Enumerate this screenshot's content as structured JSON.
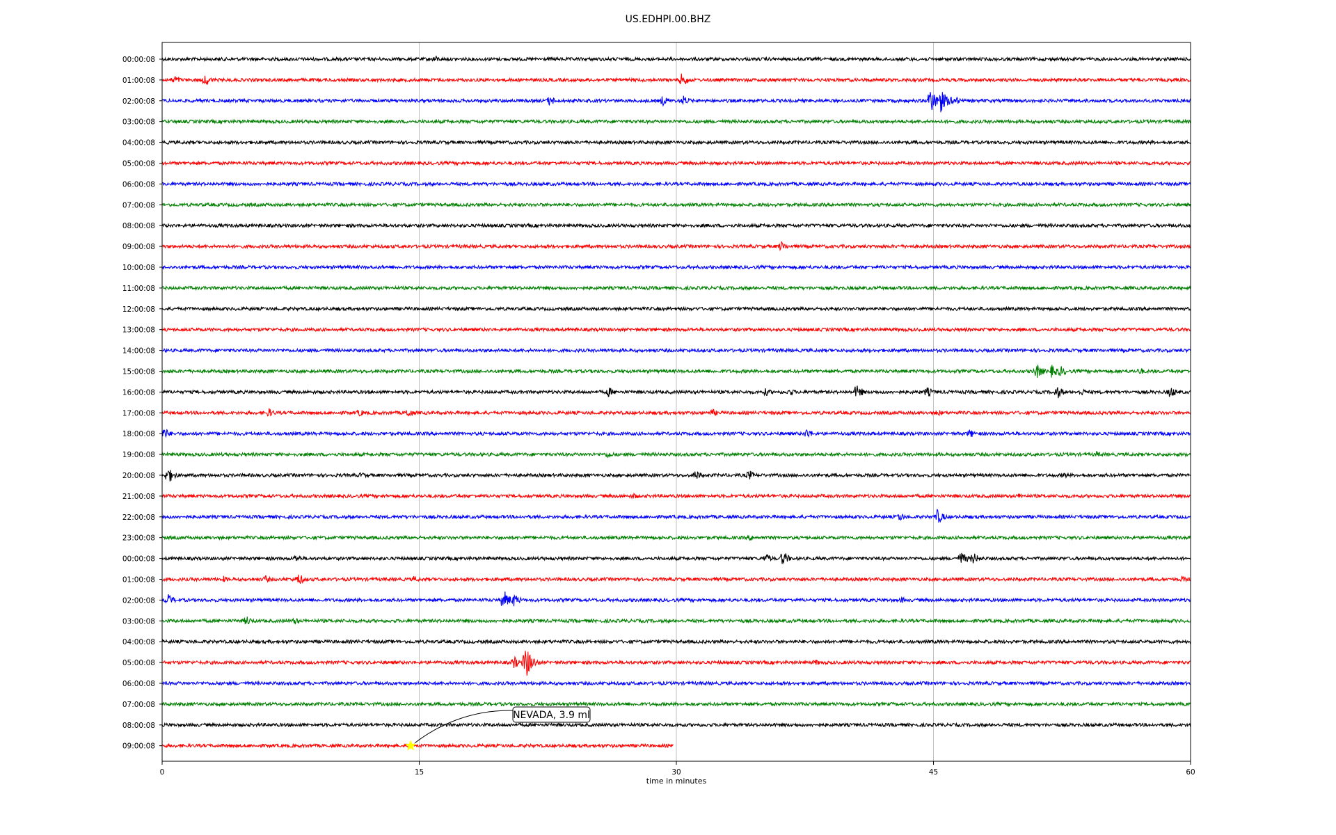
{
  "chart_data": {
    "type": "line",
    "title": "US.EDHPI.00.BHZ",
    "xlabel": "time in minutes",
    "xlim": [
      0,
      60
    ],
    "xticks": [
      "0",
      "15",
      "30",
      "45",
      "60"
    ],
    "grid": "vertical lines at 15, 30, 45",
    "trace_colors": [
      "#000000",
      "#ff0000",
      "#0000ff",
      "#008000"
    ],
    "rows": [
      {
        "label": "00:00:08",
        "end_min": 60,
        "events": [
          {
            "t": 15.9,
            "amp": 6
          }
        ]
      },
      {
        "label": "01:00:08",
        "end_min": 60,
        "events": [
          {
            "t": 0.7,
            "amp": 7
          },
          {
            "t": 2.5,
            "amp": 9
          },
          {
            "t": 30.3,
            "amp": 11
          }
        ]
      },
      {
        "label": "02:00:08",
        "end_min": 60,
        "events": [
          {
            "t": 22.6,
            "amp": 8
          },
          {
            "t": 29.2,
            "amp": 8
          },
          {
            "t": 30.4,
            "amp": 8
          },
          {
            "t": 44.8,
            "amp": 20
          },
          {
            "t": 45.3,
            "amp": 24
          },
          {
            "t": 46.1,
            "amp": 10
          }
        ]
      },
      {
        "label": "03:00:08",
        "end_min": 60,
        "events": []
      },
      {
        "label": "04:00:08",
        "end_min": 60,
        "events": []
      },
      {
        "label": "05:00:08",
        "end_min": 60,
        "events": []
      },
      {
        "label": "06:00:08",
        "end_min": 60,
        "events": []
      },
      {
        "label": "07:00:08",
        "end_min": 60,
        "events": []
      },
      {
        "label": "08:00:08",
        "end_min": 60,
        "events": []
      },
      {
        "label": "09:00:08",
        "end_min": 60,
        "events": [
          {
            "t": 36.1,
            "amp": 8
          }
        ]
      },
      {
        "label": "10:00:08",
        "end_min": 60,
        "events": []
      },
      {
        "label": "11:00:08",
        "end_min": 60,
        "events": []
      },
      {
        "label": "12:00:08",
        "end_min": 60,
        "events": []
      },
      {
        "label": "13:00:08",
        "end_min": 60,
        "events": []
      },
      {
        "label": "14:00:08",
        "end_min": 60,
        "events": []
      },
      {
        "label": "15:00:08",
        "end_min": 60,
        "events": [
          {
            "t": 51.0,
            "amp": 12
          },
          {
            "t": 51.9,
            "amp": 10
          },
          {
            "t": 52.4,
            "amp": 8
          },
          {
            "t": 57.0,
            "amp": 6
          }
        ]
      },
      {
        "label": "16:00:08",
        "end_min": 60,
        "events": [
          {
            "t": 26.0,
            "amp": 8
          },
          {
            "t": 35.2,
            "amp": 6
          },
          {
            "t": 36.6,
            "amp": 6
          },
          {
            "t": 40.5,
            "amp": 11
          },
          {
            "t": 44.6,
            "amp": 8
          },
          {
            "t": 52.2,
            "amp": 10
          },
          {
            "t": 53.6,
            "amp": 6
          },
          {
            "t": 58.8,
            "amp": 9
          }
        ]
      },
      {
        "label": "17:00:08",
        "end_min": 60,
        "events": [
          {
            "t": 6.2,
            "amp": 7
          },
          {
            "t": 11.5,
            "amp": 6
          },
          {
            "t": 14.3,
            "amp": 8
          },
          {
            "t": 32.1,
            "amp": 6
          },
          {
            "t": 45.2,
            "amp": 6
          }
        ]
      },
      {
        "label": "18:00:08",
        "end_min": 60,
        "events": [
          {
            "t": 0.1,
            "amp": 9
          },
          {
            "t": 37.6,
            "amp": 8
          },
          {
            "t": 47.1,
            "amp": 7
          }
        ]
      },
      {
        "label": "19:00:08",
        "end_min": 60,
        "events": [
          {
            "t": 26.0,
            "amp": 6
          },
          {
            "t": 54.5,
            "amp": 5
          }
        ]
      },
      {
        "label": "20:00:08",
        "end_min": 60,
        "events": [
          {
            "t": 0.3,
            "amp": 13
          },
          {
            "t": 11.6,
            "amp": 5
          },
          {
            "t": 31.1,
            "amp": 8
          },
          {
            "t": 34.2,
            "amp": 8
          },
          {
            "t": 52.6,
            "amp": 5
          }
        ]
      },
      {
        "label": "21:00:08",
        "end_min": 60,
        "events": [
          {
            "t": 27.5,
            "amp": 5
          },
          {
            "t": 50.0,
            "amp": 5
          }
        ]
      },
      {
        "label": "22:00:08",
        "end_min": 60,
        "events": [
          {
            "t": 43.0,
            "amp": 7
          },
          {
            "t": 45.2,
            "amp": 12
          }
        ]
      },
      {
        "label": "23:00:08",
        "end_min": 60,
        "events": [
          {
            "t": 34.3,
            "amp": 5
          }
        ]
      },
      {
        "label": "00:00:08",
        "end_min": 60,
        "events": [
          {
            "t": 7.8,
            "amp": 6
          },
          {
            "t": 35.2,
            "amp": 8
          },
          {
            "t": 36.2,
            "amp": 11
          },
          {
            "t": 46.6,
            "amp": 11
          },
          {
            "t": 47.3,
            "amp": 9
          }
        ]
      },
      {
        "label": "01:00:08",
        "end_min": 60,
        "events": [
          {
            "t": 3.6,
            "amp": 5
          },
          {
            "t": 6.0,
            "amp": 6
          },
          {
            "t": 7.9,
            "amp": 10
          },
          {
            "t": 14.7,
            "amp": 5
          },
          {
            "t": 59.5,
            "amp": 5
          }
        ]
      },
      {
        "label": "02:00:08",
        "end_min": 60,
        "events": [
          {
            "t": 0.3,
            "amp": 10
          },
          {
            "t": 19.9,
            "amp": 15
          },
          {
            "t": 20.5,
            "amp": 10
          },
          {
            "t": 43.1,
            "amp": 5
          }
        ]
      },
      {
        "label": "03:00:08",
        "end_min": 60,
        "events": [
          {
            "t": 4.9,
            "amp": 8
          },
          {
            "t": 7.7,
            "amp": 6
          }
        ]
      },
      {
        "label": "04:00:08",
        "end_min": 60,
        "events": []
      },
      {
        "label": "05:00:08",
        "end_min": 60,
        "events": [
          {
            "t": 20.5,
            "amp": 10
          },
          {
            "t": 21.2,
            "amp": 24
          },
          {
            "t": 38.1,
            "amp": 5
          }
        ]
      },
      {
        "label": "06:00:08",
        "end_min": 60,
        "events": []
      },
      {
        "label": "07:00:08",
        "end_min": 60,
        "events": []
      },
      {
        "label": "08:00:08",
        "end_min": 60,
        "events": []
      },
      {
        "label": "09:00:08",
        "end_min": 29.8,
        "events": []
      }
    ],
    "annotations": [
      {
        "text": "NEVADA, 3.9 ml",
        "row": 33,
        "t": 14.5,
        "marker": "star",
        "marker_color": "#ffff00"
      }
    ]
  }
}
